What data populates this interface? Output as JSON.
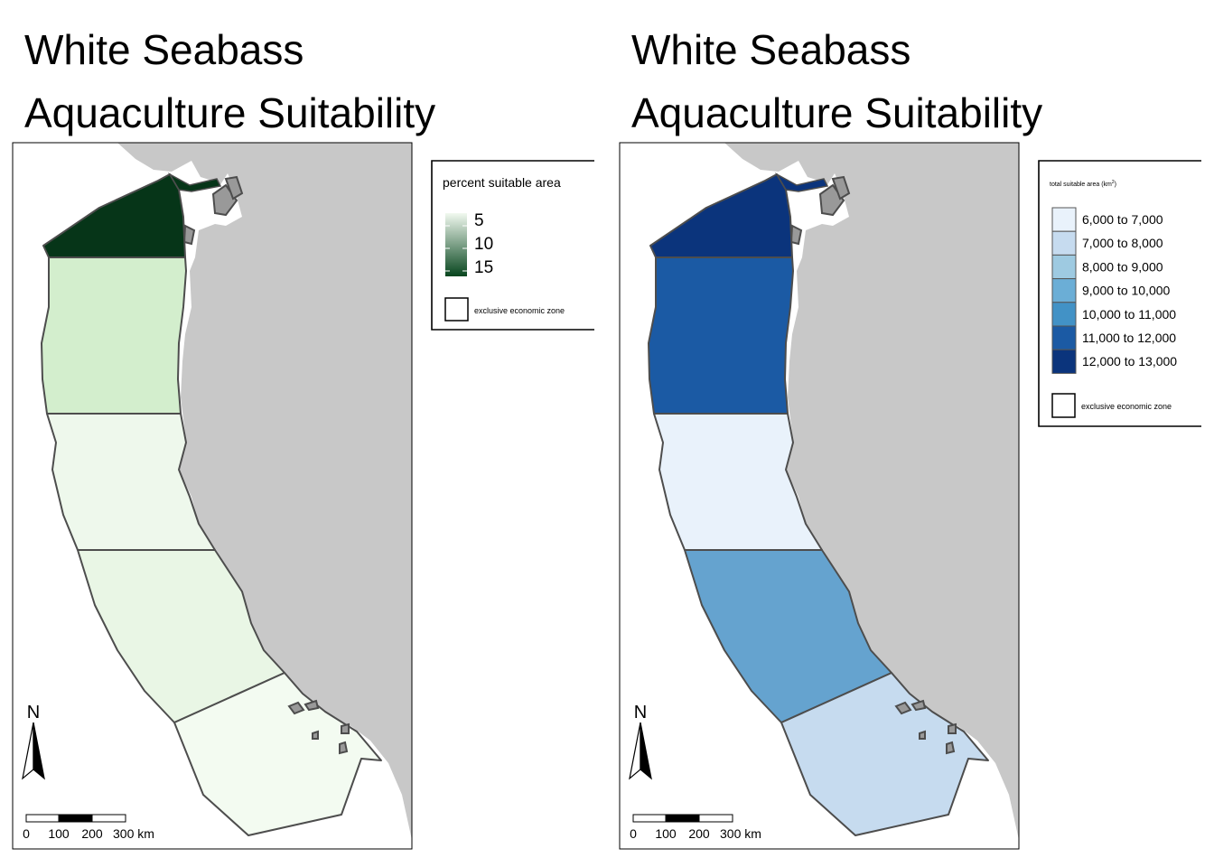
{
  "maps": [
    {
      "title_line1": "White Seabass",
      "title_line2": "Aquaculture Suitability",
      "legend": {
        "title": "percent suitable area",
        "type": "gradient",
        "ticks": [
          "5",
          "10",
          "15"
        ],
        "color_low": "#f1f9ef",
        "color_high": "#06451d",
        "border_label": "exclusive economic zone"
      },
      "regions": [
        {
          "name": "north",
          "value": 16,
          "color": "#063518"
        },
        {
          "name": "upper-middle",
          "value": 6,
          "color": "#d3eecd"
        },
        {
          "name": "middle",
          "value": 5,
          "color": "#eef8ec"
        },
        {
          "name": "lower-middle",
          "value": 5,
          "color": "#e9f6e5"
        },
        {
          "name": "south",
          "value": 4,
          "color": "#f3fbf1"
        }
      ]
    },
    {
      "title_line1": "White Seabass",
      "title_line2": "Aquaculture Suitability",
      "legend": {
        "title": "total suitable area (km",
        "title_sup": "2",
        "title_end": ")",
        "type": "classes",
        "classes": [
          {
            "label": "6,000 to 7,000",
            "color": "#e9f2fb"
          },
          {
            "label": "7,000 to 8,000",
            "color": "#c6dbef"
          },
          {
            "label": "8,000 to 9,000",
            "color": "#9ecae1"
          },
          {
            "label": "9,000 to 10,000",
            "color": "#6baed6"
          },
          {
            "label": "10,000 to 11,000",
            "color": "#4292c6"
          },
          {
            "label": "11,000 to 12,000",
            "color": "#1b5aa4"
          },
          {
            "label": "12,000 to 13,000",
            "color": "#0b347c"
          }
        ],
        "border_label": "exclusive economic zone"
      },
      "regions": [
        {
          "name": "north",
          "class": "12,000 to 13,000",
          "color": "#0b347c"
        },
        {
          "name": "upper-middle",
          "class": "11,000 to 12,000",
          "color": "#1b5aa4"
        },
        {
          "name": "middle",
          "class": "6,000 to 7,000",
          "color": "#e9f2fb"
        },
        {
          "name": "lower-middle",
          "class": "9,000 to 10,000",
          "color": "#65a3cf"
        },
        {
          "name": "south",
          "class": "7,000 to 8,000",
          "color": "#c6dbef"
        }
      ]
    }
  ],
  "north_arrow_label": "N",
  "scale_bar": {
    "labels": [
      "0",
      "100",
      "200",
      "300 km"
    ]
  },
  "colors": {
    "land": "#c8c8c8",
    "boundary": "#4d4d4d",
    "frame": "#000000"
  }
}
